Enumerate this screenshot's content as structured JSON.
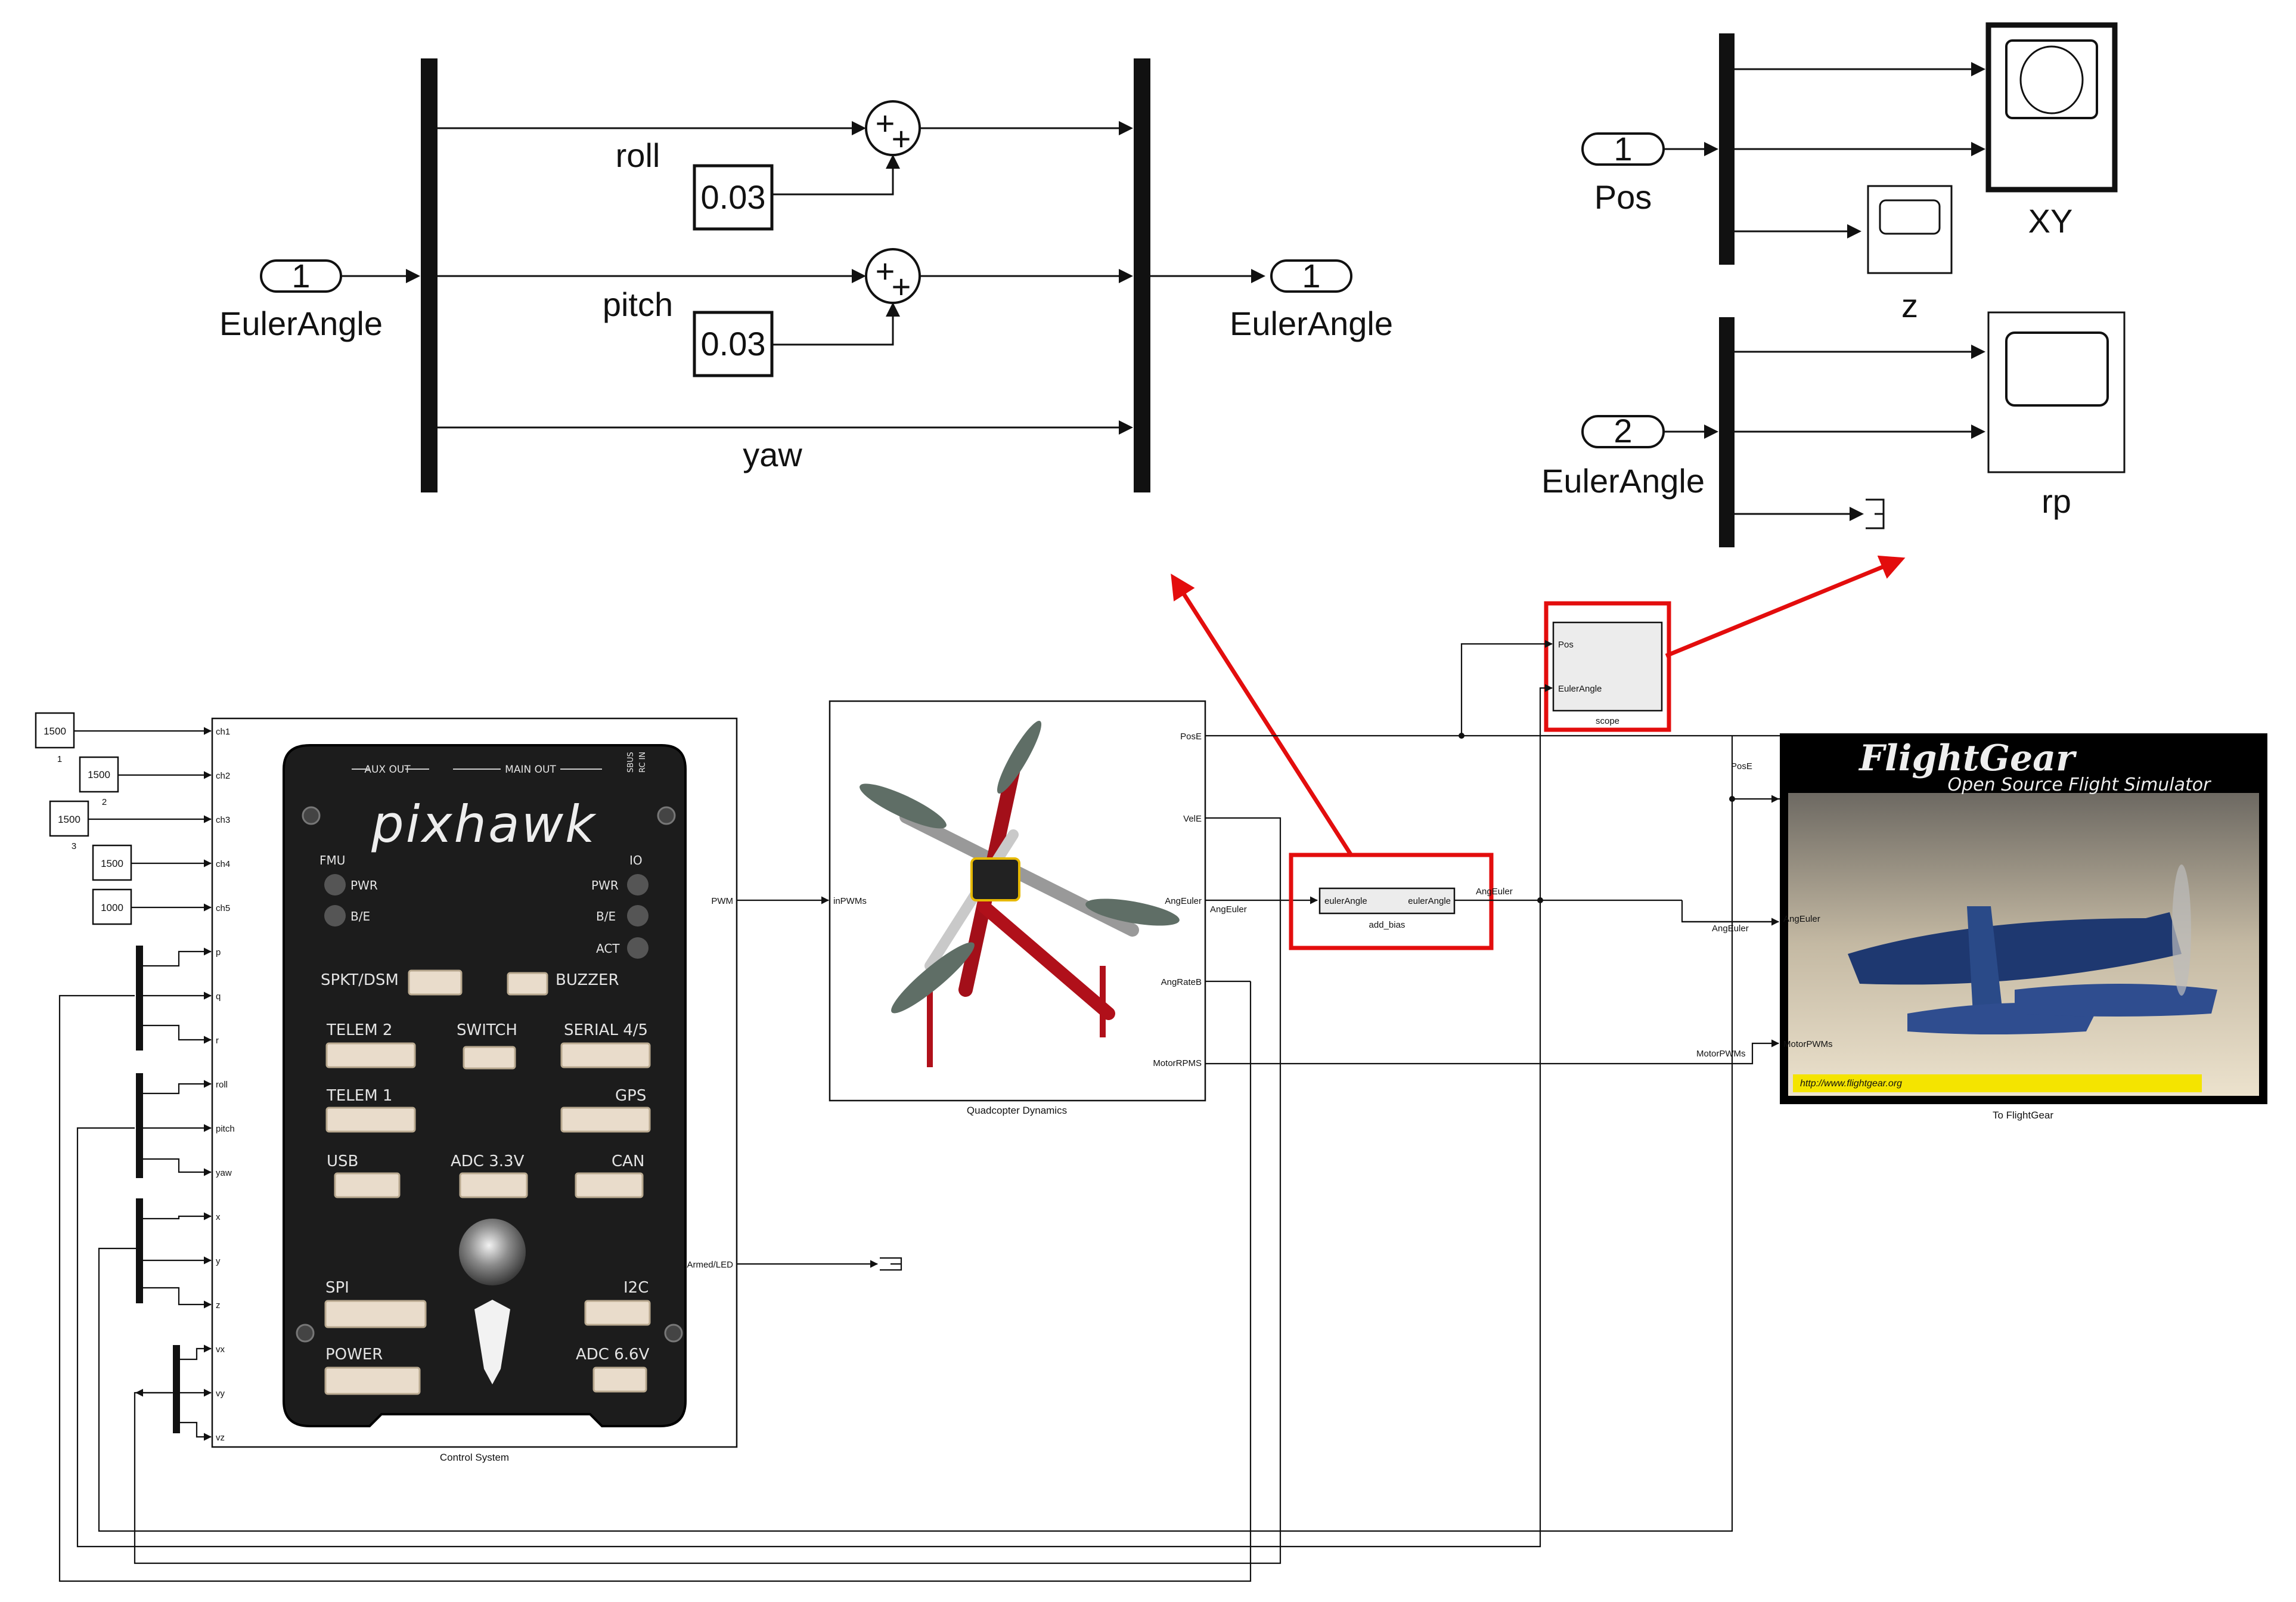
{
  "bias_subsystem": {
    "inport": {
      "number": "1",
      "name": "EulerAngle"
    },
    "outport": {
      "number": "1",
      "name": "EulerAngle"
    },
    "signals": [
      "roll",
      "pitch",
      "yaw"
    ],
    "constants": [
      "0.03",
      "0.03"
    ],
    "sum_sign": "+"
  },
  "scope_subsystem": {
    "inport_pos": {
      "number": "1",
      "name": "Pos"
    },
    "inport_euler": {
      "number": "2",
      "name": "EulerAngle"
    },
    "scopes": [
      "XY",
      "z",
      "rp"
    ]
  },
  "main_model": {
    "constants": [
      {
        "value": "1500",
        "label": "1"
      },
      {
        "value": "1500",
        "label": "2"
      },
      {
        "value": "1500",
        "label": "3"
      },
      {
        "value": "1500",
        "label": ""
      },
      {
        "value": "1000",
        "label": ""
      }
    ],
    "control_system": {
      "name": "Control System",
      "inputs": [
        "ch1",
        "ch2",
        "ch3",
        "ch4",
        "ch5",
        "p",
        "q",
        "r",
        "roll",
        "pitch",
        "yaw",
        "x",
        "y",
        "z",
        "vx",
        "vy",
        "vz"
      ],
      "outputs": [
        "PWM",
        "RCArmed/LED"
      ]
    },
    "pixhawk": {
      "logo": "pixhawk",
      "top_labels": [
        "AUX OUT",
        "MAIN OUT",
        "SBUS",
        "RC IN"
      ],
      "leds": [
        "FMU",
        "PWR",
        "B/E",
        "IO",
        "PWR",
        "B/E",
        "ACT"
      ],
      "ports": [
        "SPKT/DSM",
        "BUZZER",
        "TELEM 2",
        "SWITCH",
        "SERIAL 4/5",
        "TELEM 1",
        "GPS",
        "USB",
        "ADC 3.3V",
        "CAN",
        "SPI",
        "I2C",
        "POWER",
        "ADC 6.6V"
      ]
    },
    "quadcopter": {
      "name": "Quadcopter Dynamics",
      "input": "inPWMs",
      "outputs": [
        "PosE",
        "VelE",
        "AngEuler",
        "AngRateB",
        "MotorRPMS"
      ]
    },
    "add_bias": {
      "name": "add_bias",
      "in_port": "eulerAngle",
      "out_port": "eulerAngle"
    },
    "scope_block": {
      "name": "scope",
      "ports": [
        "Pos",
        "EulerAngle"
      ]
    },
    "flightgear": {
      "name": "To FlightGear",
      "title": "FlightGear",
      "subtitle": "Open Source Flight Simulator",
      "url": "http://www.flightgear.org",
      "ports": [
        "PosE",
        "AngEuler",
        "MotorPWMs"
      ]
    },
    "signal_labels": {
      "pwm": "PWM",
      "angeuler": "AngEuler",
      "angeuler_bias": "AngEuler",
      "pose": "PosE",
      "angeuler_fg": "AngEuler",
      "motorpwms": "MotorPWMs"
    }
  },
  "colors": {
    "highlight": "#e30d0d",
    "pixhawk_body": "#1c1c1c",
    "frame_red": "#b0101a",
    "flightgear_yellow": "#f4e400"
  }
}
